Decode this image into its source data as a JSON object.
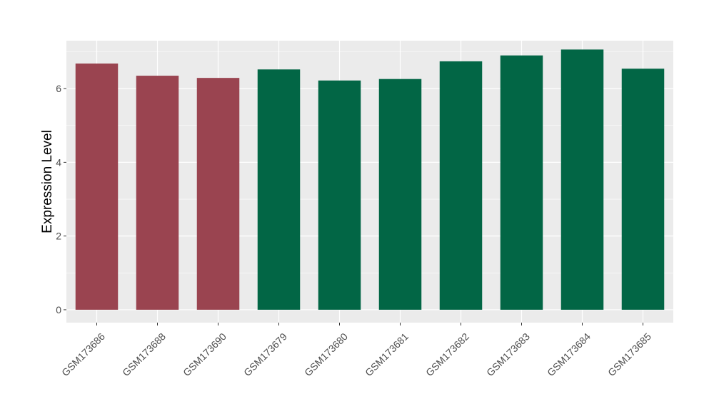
{
  "chart_data": {
    "type": "bar",
    "title": "",
    "xlabel": "",
    "ylabel": "Expression Level",
    "categories": [
      "GSM173686",
      "GSM173688",
      "GSM173690",
      "GSM173679",
      "GSM173680",
      "GSM173681",
      "GSM173682",
      "GSM173683",
      "GSM173684",
      "GSM173685"
    ],
    "values": [
      6.68,
      6.35,
      6.29,
      6.52,
      6.22,
      6.26,
      6.74,
      6.9,
      7.06,
      6.54
    ],
    "groups": [
      0,
      0,
      0,
      1,
      1,
      1,
      1,
      1,
      1,
      1
    ],
    "group_colors": [
      "#9A4450",
      "#026645"
    ],
    "ylim": [
      -0.35,
      7.3
    ],
    "yticks": [
      0,
      2,
      4,
      6
    ],
    "ytick_labels": [
      "0",
      "2",
      "4",
      "6"
    ],
    "grid": true,
    "legend": "none",
    "panel_background": "#EBEBEB",
    "grid_color": "#FFFFFF"
  }
}
